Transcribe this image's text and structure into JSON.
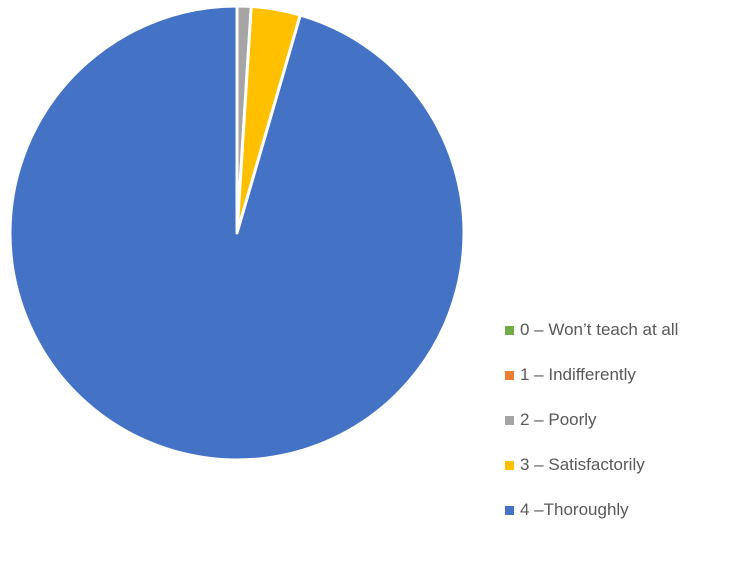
{
  "chart_data": {
    "type": "pie",
    "title": "",
    "legend_position": "right",
    "start_angle_deg": 0,
    "direction": "clockwise",
    "slices": [
      {
        "label": "0 – Won’t teach at all",
        "value": 0.0,
        "color": "#70AD47",
        "legend_color": "#70AD47"
      },
      {
        "label": "1 – Indifferently",
        "value": 0.0,
        "color": "#ED7D31",
        "legend_color": "#ED7D31"
      },
      {
        "label": "2 – Poorly",
        "value": 1.0,
        "color": "#A5A5A5",
        "legend_color": "#A5A5A5"
      },
      {
        "label": "3 – Satisfactorily",
        "value": 3.5,
        "color": "#FFC000",
        "legend_color": "#FFC000"
      },
      {
        "label": "4 –Thoroughly",
        "value": 95.5,
        "color": "#4472C4",
        "legend_color": "#4472C4"
      }
    ]
  }
}
